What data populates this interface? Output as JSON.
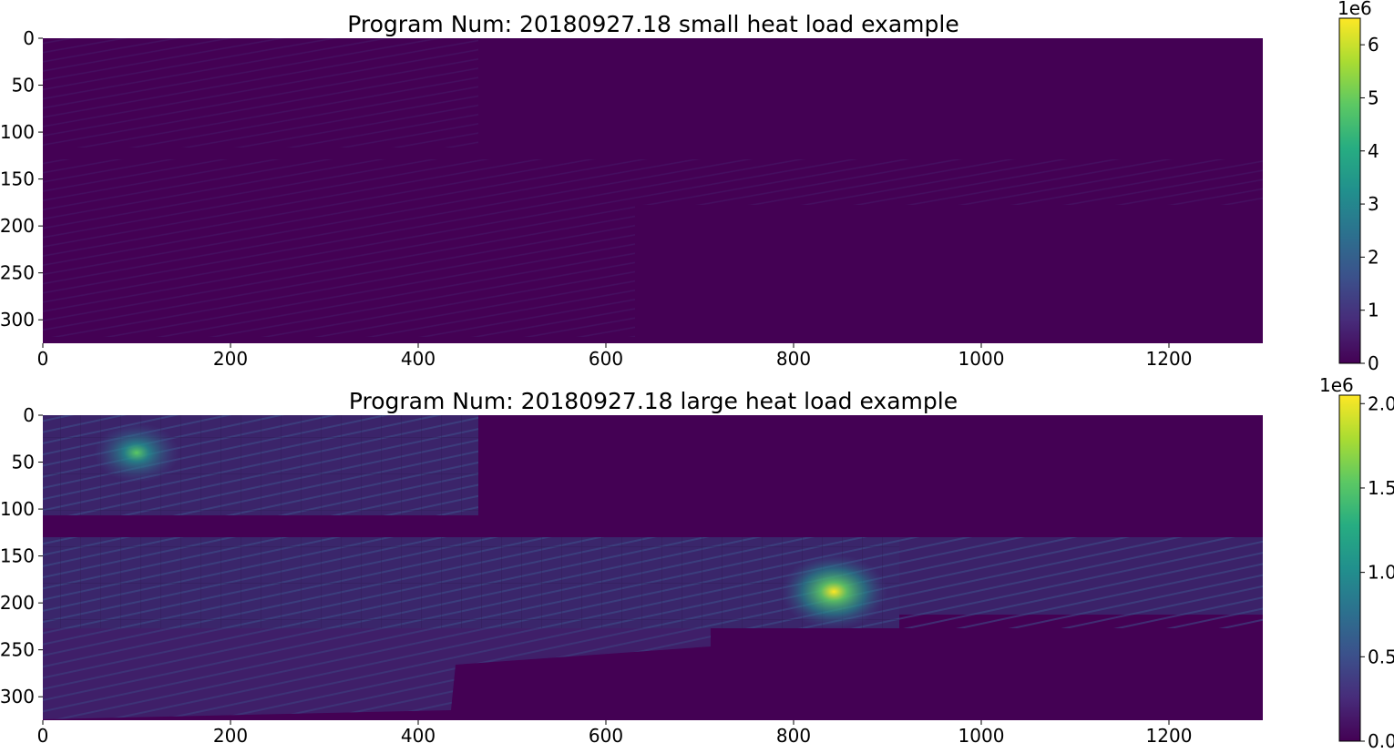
{
  "chart_data": [
    {
      "type": "heatmap",
      "title": "Program Num: 20180927.18 small heat load example",
      "xlim": [
        0,
        1300
      ],
      "ylim": [
        325,
        0
      ],
      "xticks": [
        "0",
        "200",
        "400",
        "600",
        "800",
        "1000",
        "1200"
      ],
      "yticks": [
        "0",
        "50",
        "100",
        "150",
        "200",
        "250",
        "300"
      ],
      "colormap": "viridis",
      "colorbar": {
        "range": [
          0,
          6500000.0
        ],
        "ticks": [
          "0",
          "1",
          "2",
          "3",
          "4",
          "5",
          "6"
        ],
        "offset_label": "1e6"
      },
      "background_color": "#440154",
      "grid": false
    },
    {
      "type": "heatmap",
      "title": "Program Num: 20180927.18 large heat load example",
      "xlim": [
        0,
        1300
      ],
      "ylim": [
        325,
        0
      ],
      "xticks": [
        "0",
        "200",
        "400",
        "600",
        "800",
        "1000",
        "1200"
      ],
      "yticks": [
        "0",
        "50",
        "100",
        "150",
        "200",
        "250",
        "300"
      ],
      "colormap": "viridis",
      "colorbar": {
        "range": [
          0,
          2050000.0
        ],
        "ticks": [
          "0.0",
          "0.5",
          "1.0",
          "1.5",
          "2.0"
        ],
        "offset_label": "1e6"
      },
      "background_color": "#440154",
      "hotspots": [
        {
          "x": 100,
          "y": 40,
          "value": 1150000.0
        },
        {
          "x": 843,
          "y": 188,
          "value": 1950000.0
        }
      ],
      "grid": false
    }
  ]
}
